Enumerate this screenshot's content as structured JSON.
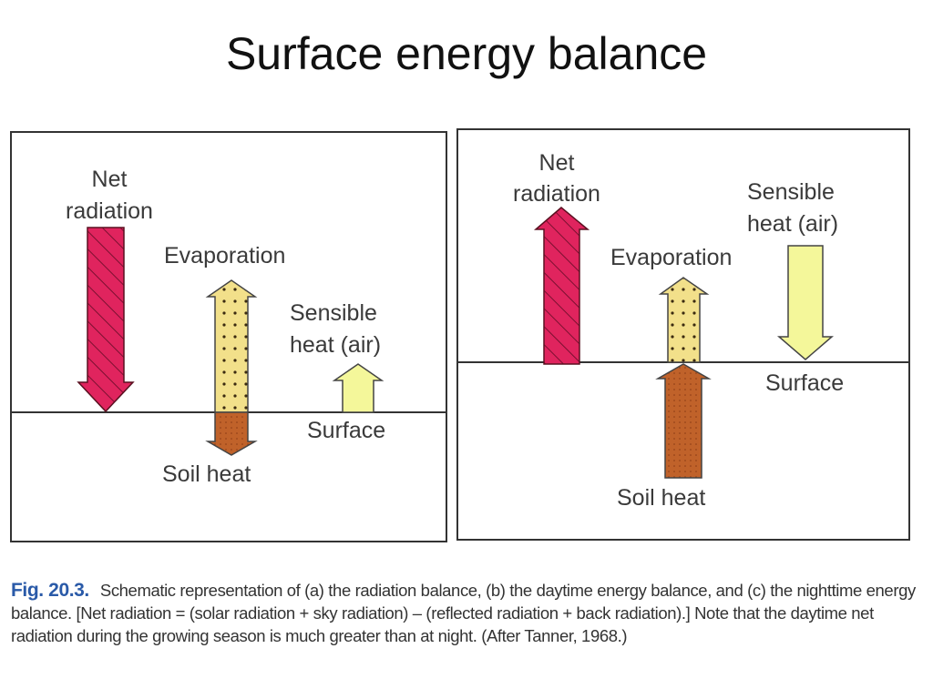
{
  "title": "Surface energy balance",
  "colors": {
    "net_radiation": "#e0245e",
    "evaporation": "#f2e08a",
    "soil_heat": "#c0622a",
    "sensible_heat": "#f4f79a",
    "fig_label": "#2a5aa8"
  },
  "panel_day_left": {
    "net_radiation": [
      "Net",
      "radiation"
    ],
    "evaporation": "Evaporation",
    "sensible_heat": [
      "Sensible",
      "heat (air)"
    ],
    "surface": "Surface",
    "soil_heat": "Soil heat"
  },
  "panel_night_right": {
    "net_radiation": [
      "Net",
      "radiation"
    ],
    "evaporation": "Evaporation",
    "sensible_heat": [
      "Sensible",
      "heat (air)"
    ],
    "surface": "Surface",
    "soil_heat": "Soil heat"
  },
  "caption": {
    "fig_label": "Fig. 20.3.",
    "text": "Schematic representation of (a) the radiation balance, (b) the daytime energy balance, and (c) the nighttime energy balance. [Net radiation = (solar radiation + sky radiation) – (reflected radiation + back radiation).] Note that the daytime net radiation during the growing season is much greater than at night. (After Tanner, 1968.)"
  }
}
